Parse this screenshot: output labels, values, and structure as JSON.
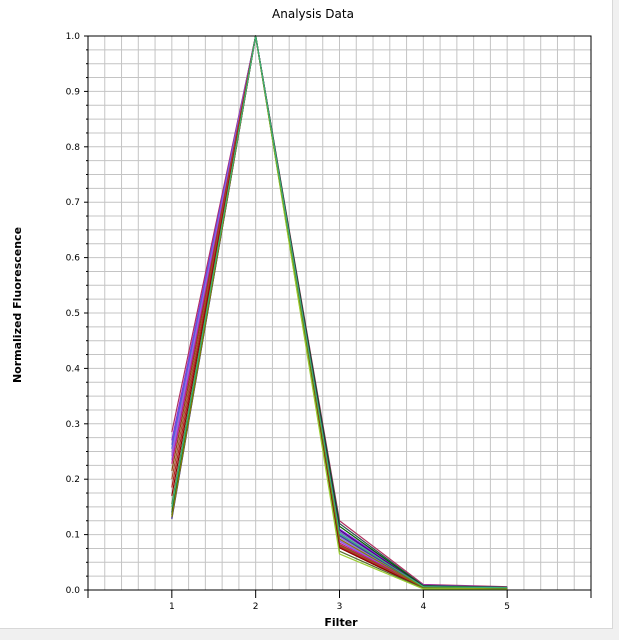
{
  "chart_data": {
    "type": "line",
    "title": "Analysis Data",
    "xlabel": "Filter",
    "ylabel": "Normalized Fluorescence",
    "x": [
      1,
      2,
      3,
      4,
      5
    ],
    "x_ticks": [
      "1",
      "2",
      "3",
      "4",
      "5"
    ],
    "xlim": [
      0,
      6
    ],
    "ylim": [
      0,
      1
    ],
    "y_ticks": [
      "0.0",
      "0.1",
      "0.2",
      "0.3",
      "0.4",
      "0.5",
      "0.6",
      "0.7",
      "0.8",
      "0.9",
      "1.0"
    ],
    "grid": true,
    "legend": "none",
    "series": [
      {
        "color": "#b03060",
        "values": [
          0.285,
          1.0,
          0.125,
          0.01,
          0.006
        ]
      },
      {
        "color": "#8a2be2",
        "values": [
          0.27,
          1.0,
          0.11,
          0.009,
          0.005
        ]
      },
      {
        "color": "#6a5acd",
        "values": [
          0.262,
          1.0,
          0.105,
          0.008,
          0.005
        ]
      },
      {
        "color": "#4169e1",
        "values": [
          0.255,
          1.0,
          0.1,
          0.007,
          0.004
        ]
      },
      {
        "color": "#9370db",
        "values": [
          0.248,
          1.0,
          0.095,
          0.006,
          0.004
        ]
      },
      {
        "color": "#ba55d3",
        "values": [
          0.242,
          1.0,
          0.09,
          0.006,
          0.003
        ]
      },
      {
        "color": "#7b68ee",
        "values": [
          0.235,
          1.0,
          0.088,
          0.005,
          0.003
        ]
      },
      {
        "color": "#c71585",
        "values": [
          0.228,
          1.0,
          0.085,
          0.005,
          0.003
        ]
      },
      {
        "color": "#8b4513",
        "values": [
          0.215,
          1.0,
          0.082,
          0.004,
          0.002
        ]
      },
      {
        "color": "#a0522d",
        "values": [
          0.2,
          1.0,
          0.08,
          0.004,
          0.002
        ]
      },
      {
        "color": "#b22222",
        "values": [
          0.185,
          1.0,
          0.078,
          0.003,
          0.002
        ]
      },
      {
        "color": "#8b0000",
        "values": [
          0.17,
          1.0,
          0.076,
          0.003,
          0.002
        ]
      },
      {
        "color": "#556b2f",
        "values": [
          0.155,
          1.0,
          0.07,
          0.003,
          0.002
        ]
      },
      {
        "color": "#9acd32",
        "values": [
          0.145,
          1.0,
          0.065,
          0.002,
          0.002
        ]
      },
      {
        "color": "#2f4f4f",
        "values": [
          0.14,
          1.0,
          0.12,
          0.008,
          0.005
        ]
      },
      {
        "color": "#006400",
        "values": [
          0.135,
          1.0,
          0.115,
          0.007,
          0.004
        ]
      },
      {
        "color": "#4b0082",
        "values": [
          0.13,
          1.0,
          0.108,
          0.006,
          0.004
        ]
      },
      {
        "color": "#483d8b",
        "values": [
          0.128,
          1.0,
          0.098,
          0.006,
          0.003
        ]
      },
      {
        "color": "#808000",
        "values": [
          0.132,
          1.0,
          0.092,
          0.005,
          0.003
        ]
      },
      {
        "color": "#3cb371",
        "values": [
          0.15,
          1.0,
          0.102,
          0.006,
          0.004
        ]
      }
    ]
  }
}
